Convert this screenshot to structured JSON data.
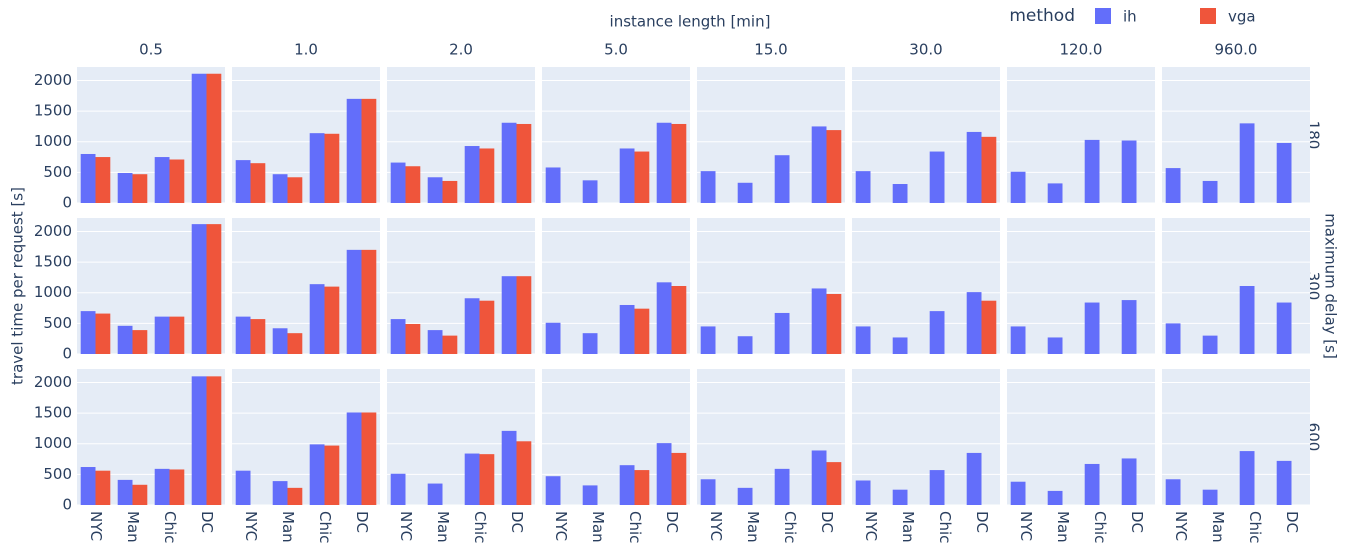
{
  "chart_data": {
    "type": "bar",
    "title": "instance length [min]",
    "y_label": "travel time per request [s]",
    "row_title": "maximum delay [s]",
    "legend_title": "method",
    "columns": [
      "0.5",
      "1.0",
      "2.0",
      "5.0",
      "15.0",
      "30.0",
      "120.0",
      "960.0"
    ],
    "rows": [
      "180",
      "300",
      "600"
    ],
    "categories": [
      "NYC",
      "Man",
      "Chic",
      "DC"
    ],
    "ylim": [
      0,
      2220
    ],
    "yticks": [
      0,
      500,
      1000,
      1500,
      2000
    ],
    "grid": true,
    "series": [
      {
        "name": "ih",
        "color": "#636efa",
        "values": [
          [
            [
              800,
              490,
              750,
              2110
            ],
            [
              700,
              470,
              1140,
              1700
            ],
            [
              660,
              420,
              930,
              1310
            ],
            [
              580,
              370,
              890,
              1310
            ],
            [
              520,
              330,
              780,
              1250
            ],
            [
              520,
              310,
              840,
              1160
            ],
            [
              510,
              320,
              1030,
              1020
            ],
            [
              570,
              360,
              1300,
              980
            ]
          ],
          [
            [
              700,
              460,
              610,
              2120
            ],
            [
              610,
              420,
              1140,
              1700
            ],
            [
              570,
              390,
              910,
              1270
            ],
            [
              510,
              340,
              800,
              1170
            ],
            [
              450,
              290,
              670,
              1070
            ],
            [
              450,
              270,
              700,
              1010
            ],
            [
              450,
              270,
              840,
              880
            ],
            [
              500,
              300,
              1110,
              840
            ]
          ],
          [
            [
              620,
              410,
              590,
              2100
            ],
            [
              560,
              390,
              990,
              1510
            ],
            [
              510,
              350,
              840,
              1210
            ],
            [
              470,
              320,
              650,
              1010
            ],
            [
              420,
              280,
              590,
              890
            ],
            [
              400,
              250,
              570,
              850
            ],
            [
              380,
              230,
              670,
              760
            ],
            [
              420,
              250,
              880,
              720
            ]
          ]
        ]
      },
      {
        "name": "vga",
        "color": "#ef553b",
        "values": [
          [
            [
              750,
              470,
              710,
              2110
            ],
            [
              650,
              420,
              1130,
              1700
            ],
            [
              600,
              360,
              890,
              1290
            ],
            [
              null,
              null,
              840,
              1290
            ],
            [
              null,
              null,
              null,
              1190
            ],
            [
              null,
              null,
              null,
              1080
            ],
            [
              null,
              null,
              null,
              null
            ],
            [
              null,
              null,
              null,
              null
            ]
          ],
          [
            [
              660,
              390,
              610,
              2120
            ],
            [
              570,
              340,
              1100,
              1700
            ],
            [
              490,
              300,
              870,
              1270
            ],
            [
              null,
              null,
              740,
              1110
            ],
            [
              null,
              null,
              null,
              980
            ],
            [
              null,
              null,
              null,
              870
            ],
            [
              null,
              null,
              null,
              null
            ],
            [
              null,
              null,
              null,
              null
            ]
          ],
          [
            [
              560,
              330,
              580,
              2100
            ],
            [
              null,
              280,
              970,
              1510
            ],
            [
              null,
              null,
              830,
              1040
            ],
            [
              null,
              null,
              570,
              850
            ],
            [
              null,
              null,
              null,
              700
            ],
            [
              null,
              null,
              null,
              null
            ],
            [
              null,
              null,
              null,
              null
            ],
            [
              null,
              null,
              null,
              null
            ]
          ]
        ]
      }
    ]
  }
}
